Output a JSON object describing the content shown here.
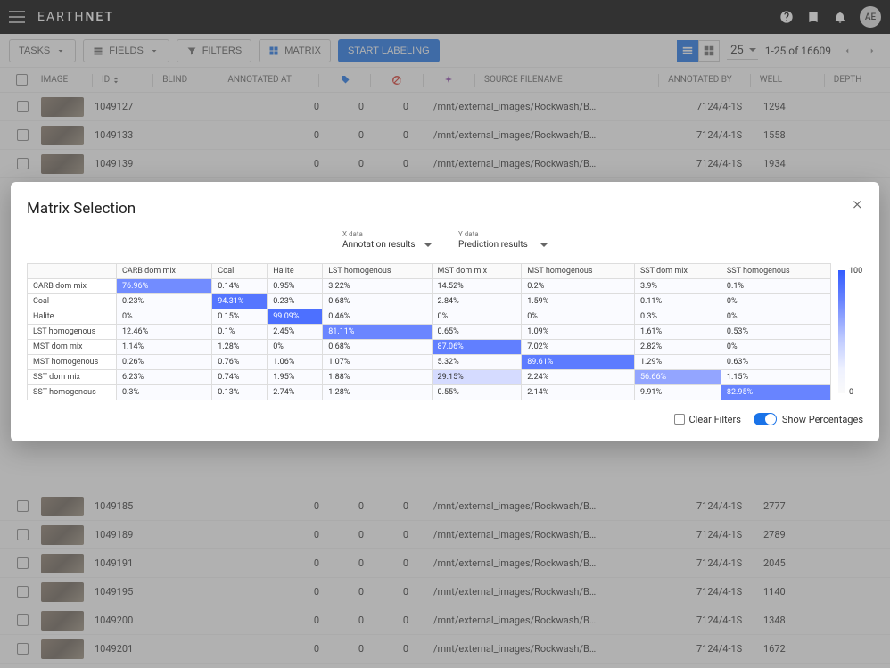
{
  "brand": {
    "thin": "EARTH",
    "bold": "NET"
  },
  "avatar": "AE",
  "toolbar": {
    "tasks": "TASKS",
    "fields": "FIELDS",
    "filters": "FILTERS",
    "matrix": "MATRIX",
    "start": "START LABELING",
    "pagesize": "25",
    "pageinfo": "1-25 of 16609"
  },
  "columns": {
    "image": "IMAGE",
    "id": "ID",
    "blind": "BLIND",
    "annat": "ANNOTATED AT",
    "src": "SOURCE FILENAME",
    "annby": "ANNOTATED BY",
    "well": "WELL",
    "depth": "DEPTH"
  },
  "rows": [
    {
      "id": "1049127",
      "c1": "0",
      "c2": "0",
      "c3": "0",
      "src": "/mnt/external_images/Rockwash/Barents_Sea_Ph…",
      "well": "7124/4-1S",
      "depth": "1294"
    },
    {
      "id": "1049133",
      "c1": "0",
      "c2": "0",
      "c3": "0",
      "src": "/mnt/external_images/Rockwash/Barents_Sea_Ph…",
      "well": "7124/4-1S",
      "depth": "1558"
    },
    {
      "id": "1049139",
      "c1": "0",
      "c2": "0",
      "c3": "0",
      "src": "/mnt/external_images/Rockwash/Barents_Sea_Ph…",
      "well": "7124/4-1S",
      "depth": "1934"
    },
    {
      "id": "1049185",
      "c1": "0",
      "c2": "0",
      "c3": "0",
      "src": "/mnt/external_images/Rockwash/Barents_Sea_Ph…",
      "well": "7124/4-1S",
      "depth": "2777"
    },
    {
      "id": "1049189",
      "c1": "0",
      "c2": "0",
      "c3": "0",
      "src": "/mnt/external_images/Rockwash/Barents_Sea_Ph…",
      "well": "7124/4-1S",
      "depth": "2789"
    },
    {
      "id": "1049191",
      "c1": "0",
      "c2": "0",
      "c3": "0",
      "src": "/mnt/external_images/Rockwash/Barents_Sea_Ph…",
      "well": "7124/4-1S",
      "depth": "2045"
    },
    {
      "id": "1049195",
      "c1": "0",
      "c2": "0",
      "c3": "0",
      "src": "/mnt/external_images/Rockwash/Barents_Sea_Ph…",
      "well": "7124/4-1S",
      "depth": "1140"
    },
    {
      "id": "1049200",
      "c1": "0",
      "c2": "0",
      "c3": "0",
      "src": "/mnt/external_images/Rockwash/Barents_Sea_Ph…",
      "well": "7124/4-1S",
      "depth": "1348"
    },
    {
      "id": "1049201",
      "c1": "0",
      "c2": "0",
      "c3": "0",
      "src": "/mnt/external_images/Rockwash/Barents_Sea_Ph…",
      "well": "7124/4-1S",
      "depth": "1672"
    }
  ],
  "modal": {
    "title": "Matrix Selection",
    "x_label": "X data",
    "x_value": "Annotation results",
    "y_label": "Y data",
    "y_value": "Prediction results",
    "headers": [
      "CARB dom mix",
      "Coal",
      "Halite",
      "LST homogenous",
      "MST dom mix",
      "MST homogenous",
      "SST dom mix",
      "SST homogenous"
    ],
    "rows": [
      {
        "label": "CARB dom mix",
        "cells": [
          [
            "76.96%",
            76.96
          ],
          [
            "0.14%",
            0.14
          ],
          [
            "0.95%",
            0.95
          ],
          [
            "3.22%",
            3.22
          ],
          [
            "14.52%",
            14.52
          ],
          [
            "0.2%",
            0.2
          ],
          [
            "3.9%",
            3.9
          ],
          [
            "0.1%",
            0.1
          ]
        ]
      },
      {
        "label": "Coal",
        "cells": [
          [
            "0.23%",
            0.23
          ],
          [
            "94.31%",
            94.31
          ],
          [
            "0.23%",
            0.23
          ],
          [
            "0.68%",
            0.68
          ],
          [
            "2.84%",
            2.84
          ],
          [
            "1.59%",
            1.59
          ],
          [
            "0.11%",
            0.11
          ],
          [
            "0%",
            0
          ]
        ]
      },
      {
        "label": "Halite",
        "cells": [
          [
            "0%",
            0
          ],
          [
            "0.15%",
            0.15
          ],
          [
            "99.09%",
            99.09
          ],
          [
            "0.46%",
            0.46
          ],
          [
            "0%",
            0
          ],
          [
            "0%",
            0
          ],
          [
            "0.3%",
            0.3
          ],
          [
            "0%",
            0
          ]
        ]
      },
      {
        "label": "LST homogenous",
        "cells": [
          [
            "12.46%",
            12.46
          ],
          [
            "0.1%",
            0.1
          ],
          [
            "2.45%",
            2.45
          ],
          [
            "81.11%",
            81.11
          ],
          [
            "0.65%",
            0.65
          ],
          [
            "1.09%",
            1.09
          ],
          [
            "1.61%",
            1.61
          ],
          [
            "0.53%",
            0.53
          ]
        ]
      },
      {
        "label": "MST dom mix",
        "cells": [
          [
            "1.14%",
            1.14
          ],
          [
            "1.28%",
            1.28
          ],
          [
            "0%",
            0
          ],
          [
            "0.68%",
            0.68
          ],
          [
            "87.06%",
            87.06
          ],
          [
            "7.02%",
            7.02
          ],
          [
            "2.82%",
            2.82
          ],
          [
            "0%",
            0
          ]
        ]
      },
      {
        "label": "MST homogenous",
        "cells": [
          [
            "0.26%",
            0.26
          ],
          [
            "0.76%",
            0.76
          ],
          [
            "1.06%",
            1.06
          ],
          [
            "1.07%",
            1.07
          ],
          [
            "5.32%",
            5.32
          ],
          [
            "89.61%",
            89.61
          ],
          [
            "1.29%",
            1.29
          ],
          [
            "0.63%",
            0.63
          ]
        ]
      },
      {
        "label": "SST dom mix",
        "cells": [
          [
            "6.23%",
            6.23
          ],
          [
            "0.74%",
            0.74
          ],
          [
            "1.95%",
            1.95
          ],
          [
            "1.88%",
            1.88
          ],
          [
            "29.15%",
            29.15
          ],
          [
            "2.24%",
            2.24
          ],
          [
            "56.66%",
            56.66
          ],
          [
            "1.15%",
            1.15
          ]
        ]
      },
      {
        "label": "SST homogenous",
        "cells": [
          [
            "0.3%",
            0.3
          ],
          [
            "0.13%",
            0.13
          ],
          [
            "2.74%",
            2.74
          ],
          [
            "1.28%",
            1.28
          ],
          [
            "0.55%",
            0.55
          ],
          [
            "2.14%",
            2.14
          ],
          [
            "9.91%",
            9.91
          ],
          [
            "82.95%",
            82.95
          ]
        ]
      }
    ],
    "legend_max": "100",
    "legend_min": "0",
    "clear_filters": "Clear Filters",
    "show_percentages": "Show Percentages",
    "heat_scale": {
      "low_color": "#fafbff",
      "mid_color": "#9eadff",
      "high_color": "#4c6fff",
      "high_text": "#ffffff"
    }
  }
}
